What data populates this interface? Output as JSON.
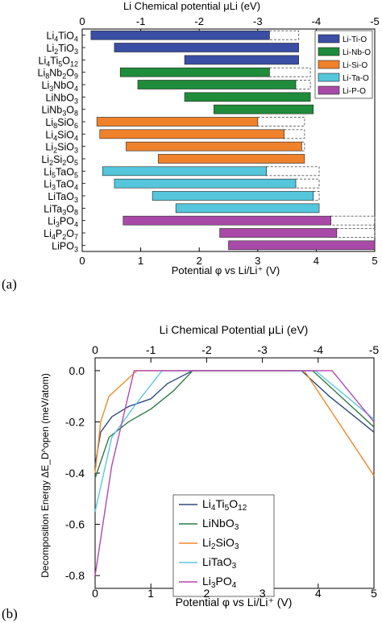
{
  "panel_labels": [
    "(a)",
    "(b)"
  ],
  "chart_data": [
    {
      "type": "bar",
      "panel": "(a)",
      "orientation": "horizontal-range",
      "xlabel": "Potential φ vs Li/Li⁺ (V)",
      "x2label": "Li Chemical potential μLi (eV)",
      "xlim": [
        0,
        5
      ],
      "x2lim": [
        0,
        -5
      ],
      "xticks": [
        "0",
        "1",
        "2",
        "3",
        "4",
        "5"
      ],
      "x2ticks": [
        "0",
        "-1",
        "-2",
        "-3",
        "-4",
        "-5"
      ],
      "legend": {
        "placement": "top-right",
        "entries": [
          {
            "label": "Li-Ti-O",
            "color": "#3a4ea5"
          },
          {
            "label": "Li-Nb-O",
            "color": "#1e8c3a"
          },
          {
            "label": "Li-Si-O",
            "color": "#f0822b"
          },
          {
            "label": "Li-Ta-O",
            "color": "#55c6dc"
          },
          {
            "label": "Li-P-O",
            "color": "#a94aa8"
          }
        ]
      },
      "rows": [
        {
          "label": "Li4TiO4",
          "group": 0,
          "start": 0.15,
          "end": 3.2,
          "dashed_end": 3.7
        },
        {
          "label": "Li2TiO3",
          "group": 0,
          "start": 0.55,
          "end": 3.7,
          "dashed_end": null
        },
        {
          "label": "Li4Ti5O12",
          "group": 0,
          "start": 1.75,
          "end": 3.7,
          "dashed_end": null
        },
        {
          "label": "Li8Nb2O9",
          "group": 1,
          "start": 0.65,
          "end": 3.2,
          "dashed_end": 3.9
        },
        {
          "label": "Li3NbO4",
          "group": 1,
          "start": 0.95,
          "end": 3.65,
          "dashed_end": 3.9
        },
        {
          "label": "LiNbO3",
          "group": 1,
          "start": 1.75,
          "end": 3.9,
          "dashed_end": null
        },
        {
          "label": "LiNb3O8",
          "group": 1,
          "start": 2.25,
          "end": 3.95,
          "dashed_end": null
        },
        {
          "label": "Li8SiO6",
          "group": 2,
          "start": 0.25,
          "end": 3.0,
          "dashed_end": 3.8
        },
        {
          "label": "Li4SiO4",
          "group": 2,
          "start": 0.3,
          "end": 3.45,
          "dashed_end": 3.8
        },
        {
          "label": "Li2SiO3",
          "group": 2,
          "start": 0.75,
          "end": 3.75,
          "dashed_end": 3.8
        },
        {
          "label": "Li2Si2O5",
          "group": 2,
          "start": 1.3,
          "end": 3.8,
          "dashed_end": null
        },
        {
          "label": "Li5TaO5",
          "group": 3,
          "start": 0.35,
          "end": 3.15,
          "dashed_end": 4.05
        },
        {
          "label": "Li3TaO4",
          "group": 3,
          "start": 0.55,
          "end": 3.65,
          "dashed_end": 4.05
        },
        {
          "label": "LiTaO3",
          "group": 3,
          "start": 1.2,
          "end": 3.95,
          "dashed_end": 4.05
        },
        {
          "label": "LiTa3O8",
          "group": 3,
          "start": 1.6,
          "end": 4.05,
          "dashed_end": null
        },
        {
          "label": "Li3PO4",
          "group": 4,
          "start": 0.7,
          "end": 4.25,
          "dashed_end": 5.0
        },
        {
          "label": "Li4P2O7",
          "group": 4,
          "start": 2.35,
          "end": 4.35,
          "dashed_end": 5.0
        },
        {
          "label": "LiPO3",
          "group": 4,
          "start": 2.5,
          "end": 5.0,
          "dashed_end": null
        }
      ]
    },
    {
      "type": "line",
      "panel": "(b)",
      "xlabel": "Potential φ vs Li/Li⁺ (V)",
      "x2label": "Li Chemical Potential μLi (eV)",
      "ylabel": "Decomposition Energy ΔE_D^open (meV/atom)",
      "xlim": [
        0,
        5
      ],
      "ylim": [
        -0.85,
        0.05
      ],
      "x2lim": [
        0,
        -5
      ],
      "xticks": [
        "0",
        "1",
        "2",
        "3",
        "4",
        "5"
      ],
      "x2ticks": [
        "0",
        "-1",
        "-2",
        "-3",
        "-4",
        "-5"
      ],
      "yticks": [
        "0.0",
        "-0.2",
        "-0.4",
        "-0.6",
        "-0.8"
      ],
      "legend_placement": "lower-center",
      "series": [
        {
          "name": "Li4Ti5O12",
          "color": "#2e4a7d",
          "x": [
            0,
            0.1,
            0.3,
            0.6,
            1.0,
            1.3,
            1.75,
            3.7,
            4.2,
            5.0
          ],
          "y": [
            -0.37,
            -0.24,
            -0.18,
            -0.14,
            -0.11,
            -0.05,
            0.0,
            0.0,
            -0.1,
            -0.24
          ]
        },
        {
          "name": "LiNbO3",
          "color": "#2f7a4a",
          "x": [
            0,
            0.25,
            0.6,
            1.0,
            1.4,
            1.75,
            3.9,
            5.0
          ],
          "y": [
            -0.42,
            -0.26,
            -0.2,
            -0.15,
            -0.08,
            0.0,
            0.0,
            -0.22
          ]
        },
        {
          "name": "Li2SiO3",
          "color": "#f08a2c",
          "x": [
            0,
            0.1,
            0.25,
            0.5,
            0.75,
            3.75,
            5.0
          ],
          "y": [
            -0.4,
            -0.2,
            -0.1,
            -0.05,
            0.0,
            0.0,
            -0.41
          ]
        },
        {
          "name": "LiTaO3",
          "color": "#58c8e0",
          "x": [
            0,
            0.3,
            0.7,
            1.2,
            3.95,
            5.0
          ],
          "y": [
            -0.55,
            -0.26,
            -0.14,
            0.0,
            0.0,
            -0.19
          ]
        },
        {
          "name": "Li3PO4",
          "color": "#b048b0",
          "x": [
            0,
            0.3,
            0.7,
            4.25,
            5.0
          ],
          "y": [
            -0.8,
            -0.37,
            0.0,
            0.0,
            -0.2
          ]
        }
      ]
    }
  ]
}
